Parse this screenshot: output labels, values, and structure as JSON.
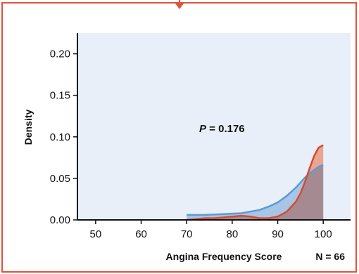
{
  "colors": {
    "frame": "#e0533a",
    "plot_background": "#e8eff8",
    "series_red": "#d94a2b",
    "series_red_fill": "#e8a591",
    "series_blue": "#5b9bd5",
    "series_blue_fill": "#a7c5e6",
    "overlap_fill": "#a68a92"
  },
  "chart_data": {
    "type": "area",
    "xlabel": "Angina Frequency Score",
    "ylabel": "Density",
    "n_label": "N = 66",
    "annotation": {
      "prefix": "P",
      "text": " = 0.176"
    },
    "xlim": [
      46,
      106
    ],
    "ylim": [
      0,
      0.225
    ],
    "xticks": [
      50,
      60,
      70,
      80,
      90,
      100
    ],
    "yticks": [
      "0.00",
      "0.05",
      "0.10",
      "0.15",
      "0.20"
    ],
    "grid": false,
    "series": [
      {
        "color": "red",
        "x": [
          70,
          72,
          74,
          76,
          78,
          80,
          82,
          84,
          86,
          88,
          90,
          92,
          94,
          95,
          96,
          97,
          98,
          99,
          100
        ],
        "y": [
          0.0,
          0.001,
          0.002,
          0.002,
          0.003,
          0.004,
          0.005,
          0.004,
          0.002,
          0.002,
          0.004,
          0.01,
          0.022,
          0.032,
          0.046,
          0.062,
          0.077,
          0.087,
          0.09
        ]
      },
      {
        "color": "blue",
        "x": [
          70,
          74,
          78,
          82,
          84,
          86,
          88,
          90,
          92,
          94,
          95,
          96,
          97,
          98,
          99,
          100
        ],
        "y": [
          0.006,
          0.006,
          0.007,
          0.008,
          0.01,
          0.012,
          0.016,
          0.021,
          0.029,
          0.039,
          0.045,
          0.051,
          0.056,
          0.06,
          0.064,
          0.066
        ]
      }
    ]
  }
}
